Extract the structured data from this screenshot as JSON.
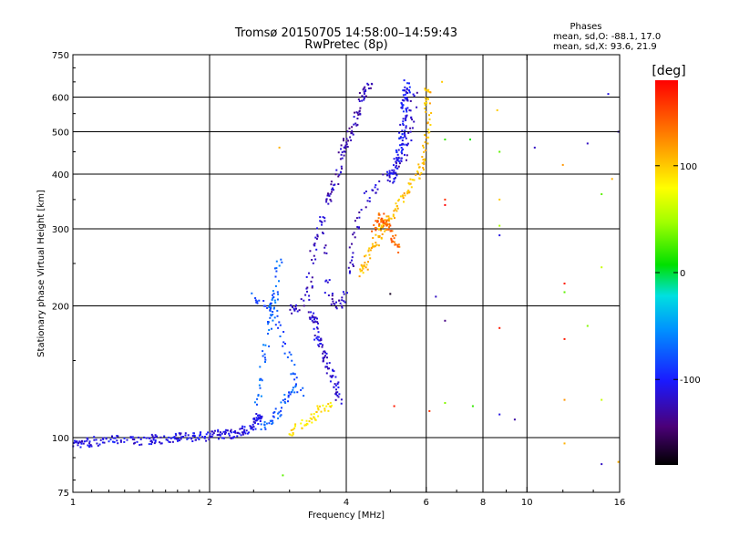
{
  "chart_data": {
    "type": "scatter",
    "title": "Tromsø 20150705 14:58:00–14:59:43",
    "subtitle": "RwPretec (8p)",
    "stats": {
      "header": "Phases",
      "o_line": "mean, sd,O: -88.1, 17.0",
      "x_line": "mean, sd,X:  93.6, 21.9"
    },
    "xlabel": "Frequency [MHz]",
    "ylabel": "Stationary phase Virtual Height [km]",
    "x_scale": "log",
    "y_scale": "log",
    "xlim": [
      1,
      16
    ],
    "ylim": [
      75,
      750
    ],
    "x_ticks": [
      1,
      2,
      4,
      6,
      8,
      10,
      16
    ],
    "x_tick_labels": [
      "1",
      "2",
      "4",
      "6",
      "8",
      "10",
      "16"
    ],
    "y_ticks": [
      75,
      100,
      200,
      300,
      400,
      500,
      600,
      750
    ],
    "y_tick_labels": [
      "75",
      "100",
      "200",
      "300",
      "400",
      "500",
      "600",
      "750"
    ],
    "x_grid": [
      2,
      4,
      6,
      8,
      10
    ],
    "y_grid": [
      100,
      200,
      300,
      400,
      500,
      600
    ],
    "grid": true,
    "colorbar": {
      "label": "[deg]",
      "range": [
        -180,
        180
      ],
      "ticks": [
        100,
        0,
        -100
      ],
      "tick_labels": [
        "100",
        "0",
        "-100"
      ]
    },
    "traces": [
      {
        "phase": -110,
        "density": 260,
        "points": [
          [
            1.0,
            96
          ],
          [
            1.05,
            97
          ],
          [
            1.1,
            98
          ],
          [
            1.2,
            98.5
          ],
          [
            1.3,
            99
          ],
          [
            1.4,
            98.5
          ],
          [
            1.5,
            99
          ],
          [
            1.6,
            99.5
          ],
          [
            1.7,
            100
          ],
          [
            1.8,
            100
          ],
          [
            1.9,
            100.5
          ],
          [
            2.0,
            101
          ],
          [
            2.1,
            101.5
          ],
          [
            2.2,
            102
          ],
          [
            2.3,
            102.5
          ],
          [
            2.4,
            104
          ],
          [
            2.5,
            106
          ],
          [
            2.55,
            110
          ],
          [
            2.6,
            112
          ]
        ]
      },
      {
        "phase": -70,
        "density": 60,
        "points": [
          [
            2.55,
            120
          ],
          [
            2.6,
            140
          ],
          [
            2.7,
            175
          ],
          [
            2.75,
            200
          ],
          [
            2.8,
            215
          ],
          [
            2.85,
            255
          ]
        ]
      },
      {
        "phase": -80,
        "density": 50,
        "points": [
          [
            2.5,
            210
          ],
          [
            2.6,
            205
          ],
          [
            2.7,
            200
          ],
          [
            2.8,
            190
          ],
          [
            2.9,
            170
          ],
          [
            3.0,
            150
          ],
          [
            3.1,
            135
          ],
          [
            3.2,
            125
          ]
        ]
      },
      {
        "phase": -75,
        "density": 45,
        "points": [
          [
            2.6,
            105
          ],
          [
            2.7,
            108
          ],
          [
            2.8,
            112
          ],
          [
            2.9,
            118
          ],
          [
            3.0,
            125
          ],
          [
            3.05,
            130
          ]
        ]
      },
      {
        "phase": -120,
        "density": 170,
        "points": [
          [
            3.0,
            195
          ],
          [
            3.1,
            198
          ],
          [
            3.2,
            200
          ],
          [
            3.3,
            215
          ],
          [
            3.35,
            240
          ],
          [
            3.4,
            280
          ],
          [
            3.5,
            300
          ],
          [
            3.55,
            320
          ],
          [
            3.6,
            230
          ],
          [
            3.7,
            210
          ],
          [
            3.8,
            200
          ],
          [
            3.9,
            205
          ],
          [
            4.0,
            220
          ],
          [
            4.1,
            260
          ],
          [
            4.2,
            300
          ],
          [
            4.3,
            330
          ],
          [
            4.5,
            360
          ],
          [
            4.8,
            390
          ],
          [
            5.0,
            400
          ],
          [
            5.2,
            420
          ],
          [
            5.4,
            450
          ],
          [
            5.5,
            500
          ],
          [
            5.6,
            550
          ],
          [
            5.7,
            620
          ]
        ]
      },
      {
        "phase": -115,
        "density": 90,
        "points": [
          [
            3.3,
            195
          ],
          [
            3.4,
            185
          ],
          [
            3.45,
            170
          ],
          [
            3.5,
            160
          ],
          [
            3.6,
            150
          ],
          [
            3.7,
            140
          ],
          [
            3.8,
            130
          ],
          [
            3.85,
            120
          ]
        ]
      },
      {
        "phase": -125,
        "density": 100,
        "points": [
          [
            3.6,
            340
          ],
          [
            3.7,
            360
          ],
          [
            3.8,
            390
          ],
          [
            3.9,
            440
          ],
          [
            4.0,
            470
          ],
          [
            4.1,
            500
          ],
          [
            4.2,
            540
          ],
          [
            4.3,
            580
          ],
          [
            4.4,
            620
          ],
          [
            4.5,
            640
          ]
        ]
      },
      {
        "phase": -105,
        "density": 120,
        "points": [
          [
            5.0,
            390
          ],
          [
            5.2,
            430
          ],
          [
            5.3,
            480
          ],
          [
            5.35,
            540
          ],
          [
            5.4,
            600
          ],
          [
            5.45,
            640
          ]
        ]
      },
      {
        "phase": 105,
        "density": 160,
        "points": [
          [
            4.3,
            235
          ],
          [
            4.4,
            245
          ],
          [
            4.5,
            260
          ],
          [
            4.6,
            275
          ],
          [
            4.7,
            290
          ],
          [
            4.8,
            300
          ],
          [
            4.9,
            310
          ],
          [
            5.0,
            320
          ],
          [
            5.2,
            340
          ],
          [
            5.4,
            360
          ],
          [
            5.6,
            380
          ],
          [
            5.8,
            400
          ],
          [
            5.9,
            430
          ],
          [
            6.0,
            480
          ],
          [
            6.05,
            540
          ],
          [
            6.05,
            600
          ],
          [
            6.0,
            640
          ]
        ]
      },
      {
        "phase": 140,
        "density": 60,
        "points": [
          [
            4.6,
            300
          ],
          [
            4.7,
            310
          ],
          [
            4.8,
            320
          ],
          [
            4.9,
            310
          ],
          [
            5.0,
            300
          ],
          [
            5.1,
            280
          ],
          [
            5.2,
            270
          ]
        ]
      },
      {
        "phase": 90,
        "density": 50,
        "points": [
          [
            3.0,
            102
          ],
          [
            3.1,
            105
          ],
          [
            3.2,
            108
          ],
          [
            3.3,
            110
          ],
          [
            3.4,
            112
          ],
          [
            3.5,
            115
          ],
          [
            3.6,
            117
          ],
          [
            3.7,
            118
          ]
        ]
      }
    ],
    "points": [
      {
        "x": 2.85,
        "y": 460,
        "phase": 110
      },
      {
        "x": 2.9,
        "y": 82,
        "phase": 30
      },
      {
        "x": 5.0,
        "y": 213,
        "phase": -170
      },
      {
        "x": 5.1,
        "y": 118,
        "phase": 170
      },
      {
        "x": 6.1,
        "y": 115,
        "phase": 160
      },
      {
        "x": 6.3,
        "y": 210,
        "phase": -120
      },
      {
        "x": 6.5,
        "y": 650,
        "phase": 100
      },
      {
        "x": 6.6,
        "y": 480,
        "phase": 20
      },
      {
        "x": 6.6,
        "y": 350,
        "phase": 160
      },
      {
        "x": 6.6,
        "y": 340,
        "phase": 180
      },
      {
        "x": 6.6,
        "y": 185,
        "phase": -140
      },
      {
        "x": 6.6,
        "y": 120,
        "phase": 40
      },
      {
        "x": 7.5,
        "y": 480,
        "phase": 10
      },
      {
        "x": 7.6,
        "y": 118,
        "phase": 20
      },
      {
        "x": 8.6,
        "y": 560,
        "phase": 100
      },
      {
        "x": 8.7,
        "y": 450,
        "phase": 30
      },
      {
        "x": 8.7,
        "y": 350,
        "phase": 100
      },
      {
        "x": 8.7,
        "y": 305,
        "phase": 50
      },
      {
        "x": 8.7,
        "y": 290,
        "phase": -110
      },
      {
        "x": 8.7,
        "y": 178,
        "phase": 170
      },
      {
        "x": 8.7,
        "y": 113,
        "phase": -110
      },
      {
        "x": 9.4,
        "y": 110,
        "phase": -130
      },
      {
        "x": 10.4,
        "y": 460,
        "phase": -120
      },
      {
        "x": 12.0,
        "y": 420,
        "phase": 120
      },
      {
        "x": 12.1,
        "y": 225,
        "phase": 170
      },
      {
        "x": 12.1,
        "y": 215,
        "phase": 30
      },
      {
        "x": 12.1,
        "y": 168,
        "phase": 170
      },
      {
        "x": 12.1,
        "y": 122,
        "phase": 120
      },
      {
        "x": 12.1,
        "y": 97,
        "phase": 110
      },
      {
        "x": 13.6,
        "y": 470,
        "phase": -120
      },
      {
        "x": 13.6,
        "y": 180,
        "phase": 40
      },
      {
        "x": 14.6,
        "y": 360,
        "phase": 30
      },
      {
        "x": 14.6,
        "y": 245,
        "phase": 60
      },
      {
        "x": 14.6,
        "y": 122,
        "phase": 60
      },
      {
        "x": 14.6,
        "y": 87,
        "phase": -120
      },
      {
        "x": 15.1,
        "y": 610,
        "phase": -110
      },
      {
        "x": 15.4,
        "y": 390,
        "phase": 110
      },
      {
        "x": 15.9,
        "y": 500,
        "phase": -120
      },
      {
        "x": 15.9,
        "y": 88,
        "phase": 110
      }
    ]
  }
}
